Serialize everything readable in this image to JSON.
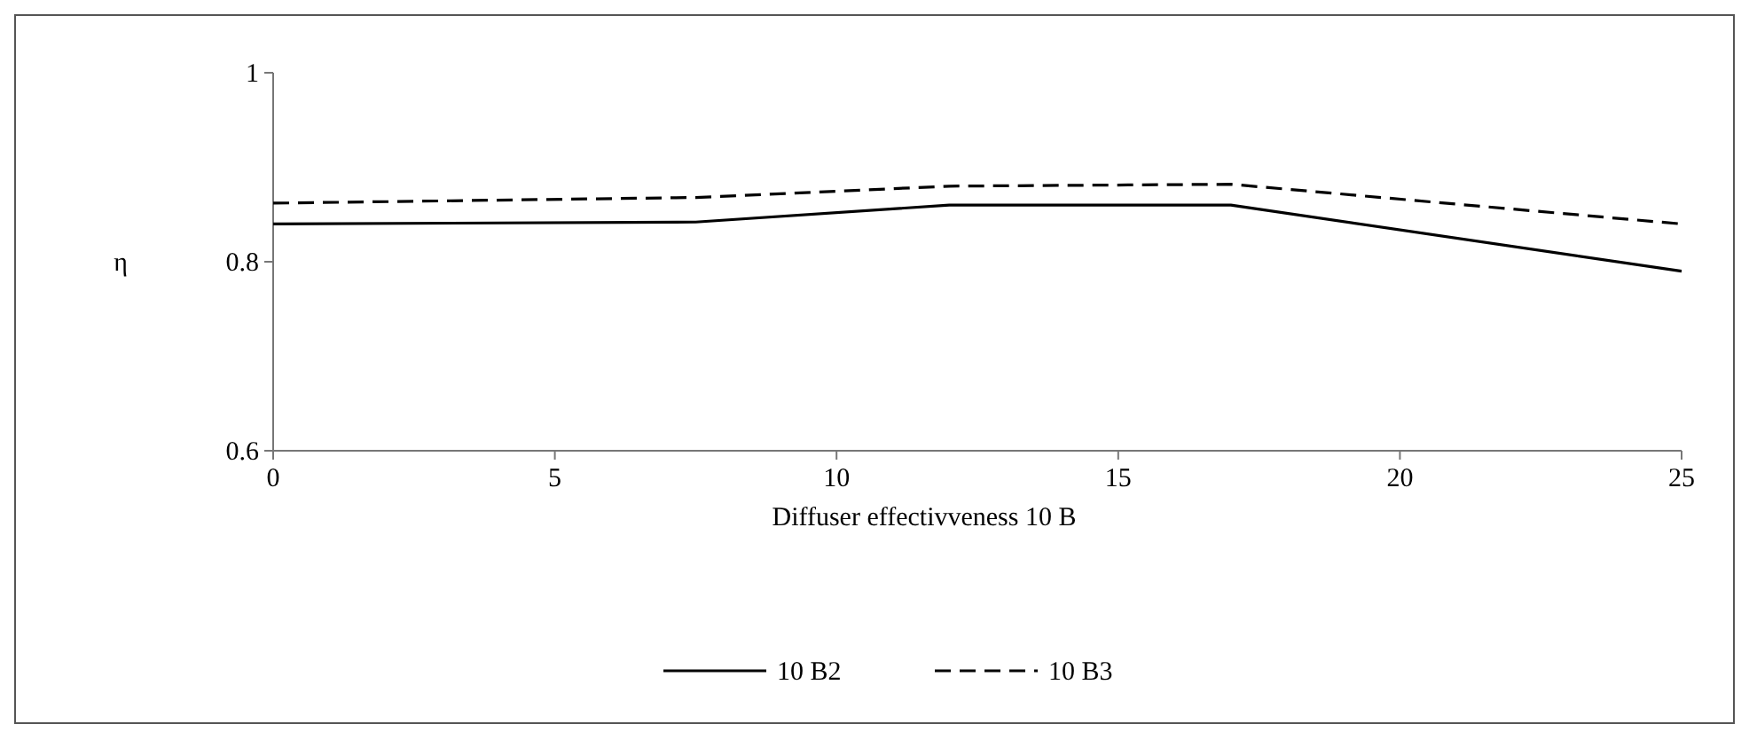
{
  "chart_data": {
    "type": "line",
    "xlabel": "Diffuser effectivveness  10  B",
    "ylabel": "η",
    "xlim": [
      0,
      25
    ],
    "xticks": [
      0,
      5,
      10,
      15,
      20,
      25
    ],
    "ylim": [
      0.6,
      1
    ],
    "yticks": [
      0.6,
      0.8,
      1
    ],
    "x": [
      0,
      7.5,
      12,
      17,
      25
    ],
    "grid": false,
    "legend": "bottom",
    "marker": "none",
    "series": [
      {
        "name": "10 B2",
        "color": "#000000",
        "line_style": "solid",
        "values": [
          0.84,
          0.842,
          0.86,
          0.86,
          0.79
        ]
      },
      {
        "name": "10 B3",
        "color": "#000000",
        "line_style": "dashed",
        "values": [
          0.862,
          0.868,
          0.88,
          0.882,
          0.84
        ]
      }
    ]
  }
}
